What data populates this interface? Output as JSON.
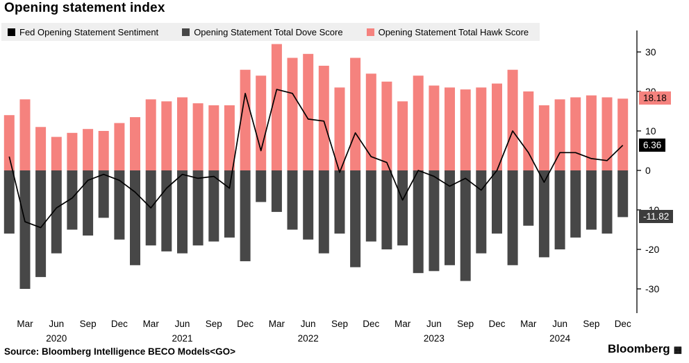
{
  "footer": {
    "source": "Source: Bloomberg Intelligence BECO Models<GO>",
    "logo": "Bloomberg",
    "logo_glyph": "▦"
  },
  "chart_data": {
    "type": "bar",
    "title": "Opening statement index",
    "subtitle": "",
    "legend_position": "top",
    "grid": false,
    "ylim": [
      -36,
      33
    ],
    "yticks": [
      30,
      20,
      10,
      0,
      -10,
      -20,
      -30
    ],
    "x": [
      "Jan '20",
      "Mar '20",
      "Apr '20",
      "Jun '20",
      "Jul '20",
      "Sep '20",
      "Nov '20",
      "Dec '20",
      "Jan '21",
      "Mar '21",
      "Apr '21",
      "Jun '21",
      "Jul '21",
      "Sep '21",
      "Nov '21",
      "Dec '21",
      "Jan '22",
      "Mar '22",
      "May '22",
      "Jun '22",
      "Jul '22",
      "Sep '22",
      "Nov '22",
      "Dec '22",
      "Feb '23",
      "Mar '23",
      "May '23",
      "Jun '23",
      "Jul '23",
      "Sep '23",
      "Nov '23",
      "Dec '23",
      "Jan '24",
      "Mar '24",
      "May '24",
      "Jun '24",
      "Jul '24",
      "Sep '24",
      "Nov '24",
      "Dec '24"
    ],
    "x_ticks": [
      {
        "label": "Mar",
        "index": 1
      },
      {
        "label": "Jun",
        "index": 3
      },
      {
        "label": "Sep",
        "index": 5
      },
      {
        "label": "Dec",
        "index": 7
      },
      {
        "label": "Mar",
        "index": 9
      },
      {
        "label": "Jun",
        "index": 11
      },
      {
        "label": "Sep",
        "index": 13
      },
      {
        "label": "Dec",
        "index": 15
      },
      {
        "label": "Mar",
        "index": 17
      },
      {
        "label": "Jun",
        "index": 19
      },
      {
        "label": "Sep",
        "index": 21
      },
      {
        "label": "Dec",
        "index": 23
      },
      {
        "label": "Mar",
        "index": 25
      },
      {
        "label": "Jun",
        "index": 27
      },
      {
        "label": "Sep",
        "index": 29
      },
      {
        "label": "Dec",
        "index": 31
      },
      {
        "label": "Mar",
        "index": 33
      },
      {
        "label": "Jun",
        "index": 35
      },
      {
        "label": "Sep",
        "index": 37
      },
      {
        "label": "Dec",
        "index": 39
      }
    ],
    "year_ticks": [
      {
        "label": "2020",
        "index": 3
      },
      {
        "label": "2021",
        "index": 11
      },
      {
        "label": "2022",
        "index": 19
      },
      {
        "label": "2023",
        "index": 27
      },
      {
        "label": "2024",
        "index": 35
      }
    ],
    "series": [
      {
        "name": "Fed Opening Statement Sentiment",
        "type": "line",
        "color": "#000000",
        "values": [
          3.5,
          -13,
          -14.5,
          -9.5,
          -7,
          -2.5,
          -1,
          -2.5,
          -5.5,
          -9.5,
          -4.5,
          -1,
          -2,
          -1.5,
          -4.5,
          19.5,
          5,
          20.5,
          19.5,
          13,
          12.5,
          -0.5,
          9.5,
          3.5,
          2,
          -7.5,
          0,
          -1.5,
          -4,
          -2,
          -5,
          0,
          10,
          4.5,
          -3,
          4.5,
          4.5,
          3,
          2.5,
          6.36
        ]
      },
      {
        "name": "Opening Statement Total Dove Score",
        "type": "bar",
        "color": "#474747",
        "values": [
          -16,
          -30,
          -27,
          -21,
          -15,
          -16.5,
          -12,
          -17.5,
          -24,
          -19,
          -20.5,
          -21,
          -19,
          -18,
          -17,
          -23,
          -8,
          -10.5,
          -15,
          -17.5,
          -21,
          -16,
          -24.5,
          -18,
          -20,
          -19,
          -26,
          -25.5,
          -24,
          -28,
          -21,
          -16,
          -24,
          -14,
          -22,
          -20,
          -17,
          -15,
          -16,
          -11.82
        ]
      },
      {
        "name": "Opening Statement Total Hawk Score",
        "type": "bar",
        "color": "#f5827e",
        "values": [
          14,
          18,
          11,
          8.5,
          9.5,
          10.5,
          10,
          12,
          13.5,
          18,
          17.5,
          18.5,
          17,
          16.5,
          16.5,
          25.5,
          24,
          32,
          28.5,
          29.5,
          26.5,
          21,
          28.5,
          24.5,
          22.5,
          17.5,
          24,
          21.5,
          21,
          20.5,
          21,
          22,
          25.5,
          20,
          16.5,
          18,
          18.5,
          19,
          18.5,
          18.18
        ]
      }
    ],
    "badges": [
      {
        "label": "18.18",
        "value": 18.18,
        "bg": "#f5827e",
        "color": "#000000"
      },
      {
        "label": "6.36",
        "value": 6.36,
        "bg": "#000000",
        "color": "#ffffff"
      },
      {
        "label": "-11.82",
        "value": -11.82,
        "bg": "#3c3c3c",
        "color": "#ffffff"
      }
    ]
  }
}
